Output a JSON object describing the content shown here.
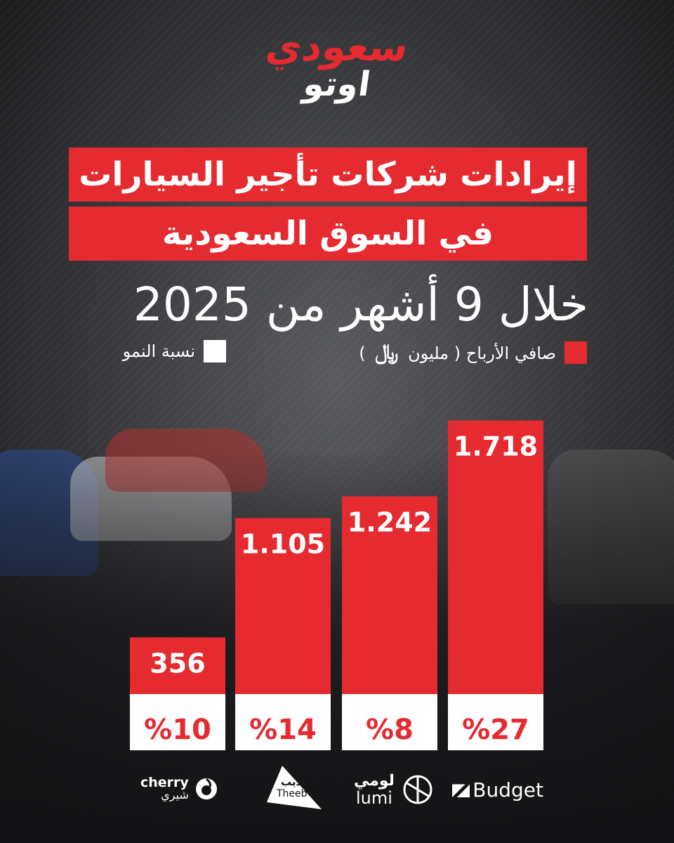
{
  "brand": {
    "logo_top": "سعودي",
    "logo_bottom": "اوتو"
  },
  "title": {
    "line1": "إيرادات شركات تأجير السيارات",
    "line2": "في السوق السعودية"
  },
  "subtitle": "خلال 9 أشهر من 2025",
  "legend": {
    "profit_label": "صافي الأرباح ( مليون",
    "profit_currency_symbol": "﷼",
    "profit_suffix": ")",
    "growth_label": "نسبة النمو"
  },
  "colors": {
    "profit": "#e52a30",
    "growth": "#ffffff",
    "text_dark": "#1a1a1a"
  },
  "chart_data": {
    "type": "bar",
    "categories": [
      "cherry شيري",
      "ذيب Theeb",
      "لومي lumi",
      "Budget"
    ],
    "series": [
      {
        "name": "صافي الأرباح ( مليون ﷼ )",
        "values": [
          356,
          1105,
          1242,
          1718
        ],
        "labels": [
          "356",
          "1.105",
          "1.242",
          "1.718"
        ]
      },
      {
        "name": "نسبة النمو",
        "values": [
          10,
          14,
          8,
          27
        ],
        "labels": [
          "%10",
          "%14",
          "%8",
          "%27"
        ]
      }
    ],
    "ylim": [
      0,
      1800
    ]
  },
  "brands": [
    {
      "name": "cherry",
      "sub": "شيري",
      "icon": "cherry-logo-icon"
    },
    {
      "name": "ذيب",
      "sub": "Theeb",
      "icon": "theeb-logo-icon"
    },
    {
      "name": "لومي",
      "sub": "lumi",
      "icon": "lumi-logo-icon"
    },
    {
      "name": "Budget",
      "sub": "",
      "icon": "budget-logo-icon"
    }
  ]
}
